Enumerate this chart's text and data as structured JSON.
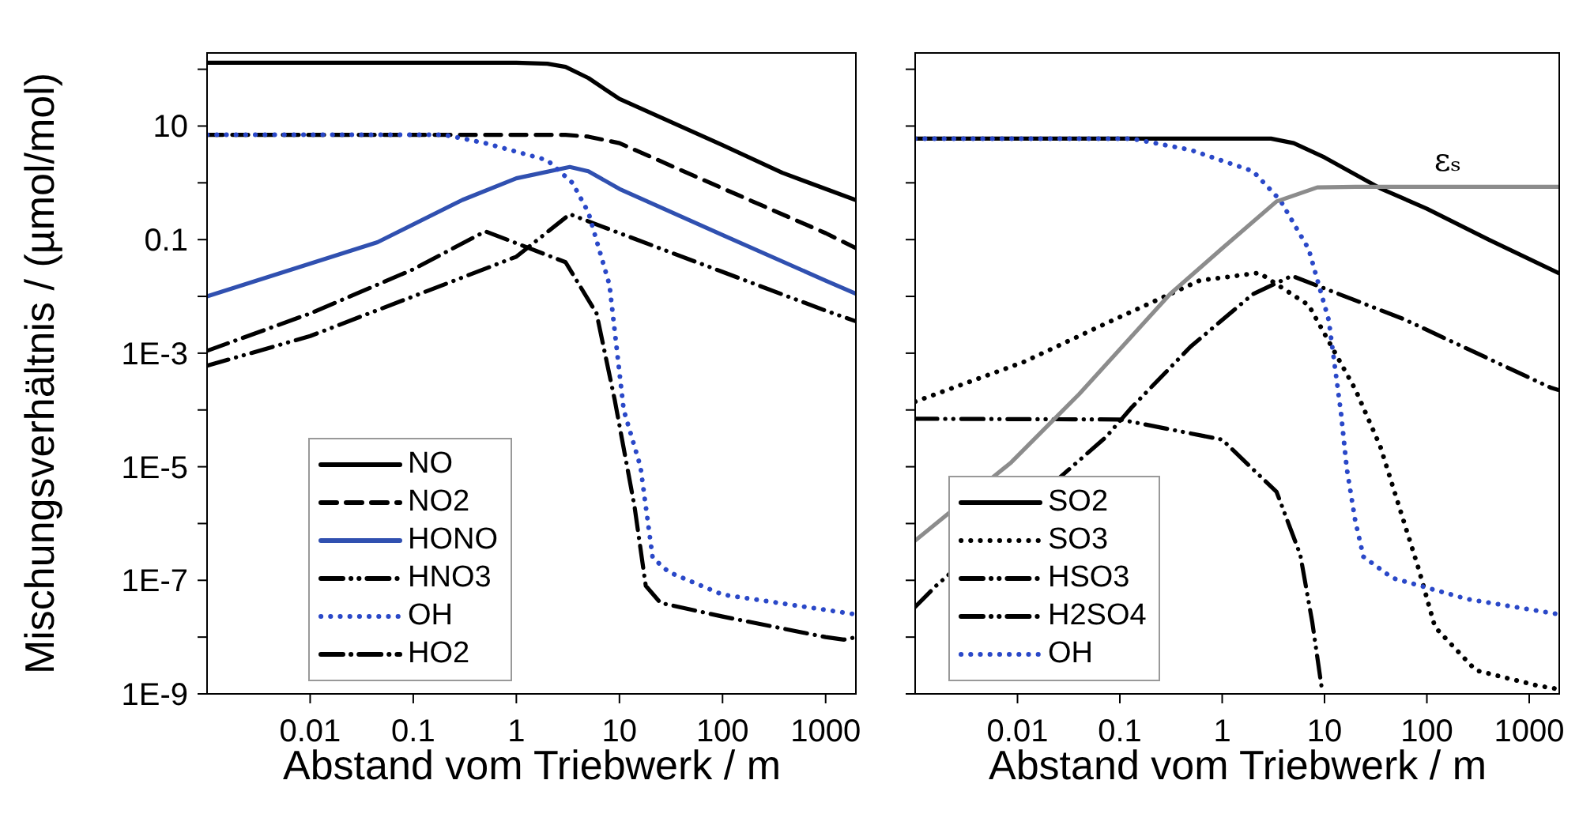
{
  "chart_data": [
    {
      "type": "line",
      "xlabel": "Abstand vom Triebwerk / m",
      "ylabel": "Mischungsverhältnis / (µmol/mol)",
      "log": "xy",
      "grid": false,
      "legend": "bottom left",
      "xlim": [
        0.001,
        2000
      ],
      "ylim": [
        1e-09,
        200
      ],
      "xticks": [
        0.01,
        0.1,
        1,
        10,
        100,
        1000
      ],
      "yticks": [
        {
          "value": 1e-09,
          "label": "1E-9"
        },
        {
          "value": 1e-08,
          "label": null
        },
        {
          "value": 1e-07,
          "label": "1E-7"
        },
        {
          "value": 1e-06,
          "label": null
        },
        {
          "value": 1e-05,
          "label": "1E-5"
        },
        {
          "value": 0.0001,
          "label": null
        },
        {
          "value": 0.001,
          "label": "1E-3"
        },
        {
          "value": 0.01,
          "label": null
        },
        0.1,
        {
          "value": 1,
          "label": null
        },
        10,
        {
          "value": 100,
          "label": null
        }
      ],
      "series": [
        {
          "name": "NO",
          "color": "#000000",
          "line_style": "solid",
          "x": [
            0.001,
            1,
            2,
            3,
            5,
            10,
            100,
            380,
            2000
          ],
          "values": [
            130,
            130,
            125,
            110,
            70,
            30,
            4.6,
            1.5,
            0.49
          ]
        },
        {
          "name": "NO2",
          "color": "#000000",
          "line_style": "dashed",
          "x": [
            0.001,
            3,
            5,
            10,
            100,
            1000,
            2000
          ],
          "values": [
            7,
            7,
            6.5,
            5,
            0.8,
            0.13,
            0.07
          ]
        },
        {
          "name": "HONO",
          "color": "#3050b0",
          "line_style": "solid",
          "x": [
            0.001,
            0.045,
            0.3,
            1,
            3.3,
            5,
            10,
            100,
            1000,
            2000
          ],
          "values": [
            0.01,
            0.09,
            0.5,
            1.2,
            1.9,
            1.6,
            0.78,
            0.12,
            0.019,
            0.011
          ]
        },
        {
          "name": "HNO3",
          "color": "#000000",
          "line_style": "dashdotdot",
          "x": [
            0.001,
            0.01,
            0.1,
            1,
            3.3,
            10,
            100,
            1000,
            2000
          ],
          "values": [
            0.0006,
            0.002,
            0.01,
            0.05,
            0.28,
            0.13,
            0.027,
            0.0056,
            0.0036
          ]
        },
        {
          "name": "OH",
          "color": "#2a48c8",
          "line_style": "dotted",
          "x": [
            0.001,
            0.2,
            0.5,
            2,
            3.5,
            5,
            8,
            11,
            16,
            21,
            30,
            100,
            2000
          ],
          "values": [
            7,
            7,
            5,
            2.5,
            1,
            0.3,
            0.016,
            0.0001,
            1e-05,
            2.5e-07,
            1.4e-07,
            5.6e-08,
            2.5e-08
          ]
        },
        {
          "name": "HO2",
          "color": "#000000",
          "line_style": "dashdot",
          "x": [
            0.001,
            0.01,
            0.1,
            0.5,
            3,
            6,
            9,
            14,
            18,
            25,
            100,
            1000,
            1500,
            2000
          ],
          "values": [
            0.0011,
            0.005,
            0.03,
            0.14,
            0.04,
            0.005,
            0.00015,
            2e-06,
            8e-08,
            4e-08,
            2.3e-08,
            1e-08,
            9e-09,
            1e-08
          ]
        }
      ]
    },
    {
      "type": "line",
      "xlabel": "Abstand vom Triebwerk / m",
      "log": "xy",
      "grid": false,
      "legend": "bottom left",
      "tick_labels": "x",
      "xlim": [
        0.001,
        2000
      ],
      "ylim": [
        1e-09,
        200
      ],
      "xticks": [
        0.01,
        0.1,
        1,
        10,
        100,
        1000
      ],
      "yticks": [
        1e-09,
        1e-08,
        1e-07,
        1e-06,
        1e-05,
        0.0001,
        0.001,
        0.01,
        0.1,
        1,
        10,
        100
      ],
      "annotations": [
        {
          "text": "εₛ",
          "x": 160,
          "y": 0.83
        }
      ],
      "series": [
        {
          "name": "SO2",
          "color": "#000000",
          "line_style": "solid",
          "x": [
            0.001,
            3,
            5,
            10,
            35,
            100,
            400,
            2000
          ],
          "values": [
            6,
            6,
            5,
            2.8,
            0.8,
            0.35,
            0.1,
            0.025
          ]
        },
        {
          "name": "SO3",
          "color": "#000000",
          "line_style": "dotted",
          "x": [
            0.001,
            0.0115,
            0.08,
            0.6,
            2.3,
            7,
            20,
            35,
            83,
            120,
            300,
            1200,
            2000
          ],
          "values": [
            0.00014,
            0.0007,
            0.0036,
            0.019,
            0.026,
            0.007,
            0.00023,
            2.3e-05,
            1.6e-07,
            1.5e-08,
            2.6e-09,
            1.4e-09,
            1.2e-09
          ]
        },
        {
          "name": "HSO3",
          "color": "#000000",
          "line_style": "dashdotdot",
          "x": [
            0.001,
            0.1,
            1,
            3.4,
            5.8,
            7.6,
            9.5
          ],
          "values": [
            7e-05,
            6.8e-05,
            3e-05,
            3.6e-06,
            2.8e-07,
            1.8e-08,
            1.1e-09
          ]
        },
        {
          "name": "H2SO4",
          "color": "#000000",
          "line_style": "dashdotdot",
          "x": [
            0.001,
            0.0016,
            0.074,
            0.13,
            0.49,
            2,
            4.8,
            59,
            1600,
            2000
          ],
          "values": [
            3.4e-08,
            8e-08,
            3.4e-05,
            0.00011,
            0.0013,
            0.011,
            0.023,
            0.004,
            0.00025,
            0.00022
          ]
        },
        {
          "name": "OH",
          "color": "#2a48c8",
          "line_style": "dotted",
          "x": [
            0.001,
            0.13,
            0.49,
            2,
            3.7,
            7,
            11,
            14.5,
            16.5,
            20,
            24,
            46,
            245,
            2000
          ],
          "values": [
            6,
            6,
            3.8,
            1.6,
            0.49,
            0.068,
            0.0038,
            8.7e-05,
            9.3e-06,
            1.1e-06,
            2.6e-07,
            1.1e-07,
            4.7e-08,
            2.5e-08
          ]
        },
        {
          "color": "#8c8c8c",
          "line_style": "solid",
          "x": [
            0.001,
            0.0087,
            0.04,
            0.31,
            1,
            3.4,
            8.5,
            20,
            2000
          ],
          "values": [
            5e-07,
            1.2e-05,
            0.00019,
            0.011,
            0.07,
            0.47,
            0.83,
            0.85,
            0.85
          ]
        }
      ]
    }
  ]
}
